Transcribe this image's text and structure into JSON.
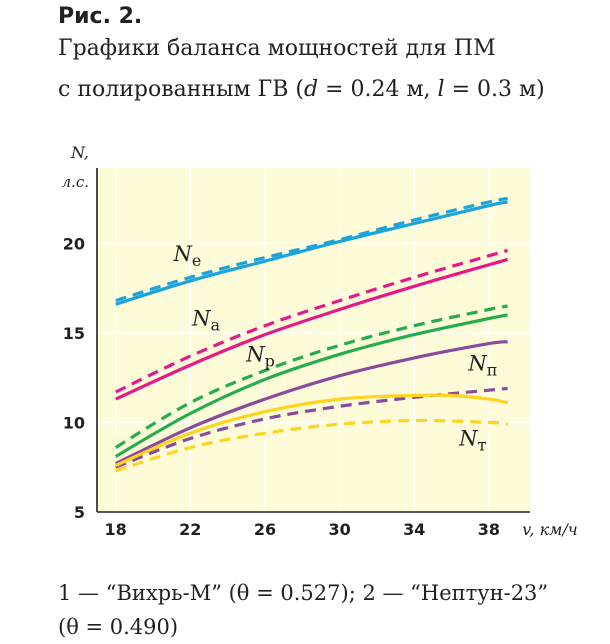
{
  "figure_label": "Рис. 2.",
  "caption": {
    "line1": "Графики баланса мощностей для ПМ",
    "line2_prefix": "с полированным ГВ (",
    "d_var": "d",
    "d_value": " = 0.24  м, ",
    "l_var": "l",
    "l_value": " = 0.3 м)"
  },
  "legend_text": {
    "line1": "1 — “Вихрь-М” (θ = 0.527); 2 — “Нептун-23”",
    "line2": "(θ = 0.490)"
  },
  "colors": {
    "background": "#fefbd8",
    "grid": "#ffffff",
    "Ne": "#1aa3dd",
    "Na": "#e6198c",
    "Np": "#25ac4c",
    "Nn": "#8a4a9e",
    "Nt": "#ffd41f"
  },
  "chart_data": {
    "type": "line",
    "ylabel_line1": "N,",
    "ylabel_line2": "л.с.",
    "xlabel": "v, км/ч",
    "xlim": [
      17,
      40.2
    ],
    "ylim": [
      5,
      24.2
    ],
    "xticks": [
      18,
      22,
      26,
      30,
      34,
      38
    ],
    "yticks": [
      5,
      10,
      15,
      20
    ],
    "grid": true,
    "annotations": [
      {
        "base": "N",
        "sub": "e",
        "x": 21.1,
        "y": 19.0
      },
      {
        "base": "N",
        "sub": "a",
        "x": 22.1,
        "y": 15.4
      },
      {
        "base": "N",
        "sub": "р",
        "x": 25.0,
        "y": 13.4
      },
      {
        "base": "N",
        "sub": "п",
        "x": 36.9,
        "y": 12.9
      },
      {
        "base": "N",
        "sub": "т",
        "x": 36.4,
        "y": 8.7
      }
    ],
    "series": [
      {
        "key": "Ne",
        "style": "solid",
        "x": [
          18,
          22,
          26,
          30,
          34,
          38,
          39
        ],
        "y": [
          16.6,
          17.9,
          19.0,
          20.1,
          21.1,
          22.1,
          22.3
        ]
      },
      {
        "key": "Ne",
        "style": "dashed",
        "x": [
          18,
          22,
          26,
          30,
          34,
          38,
          39
        ],
        "y": [
          16.8,
          18.1,
          19.2,
          20.2,
          21.3,
          22.3,
          22.5
        ]
      },
      {
        "key": "Na",
        "style": "solid",
        "x": [
          18,
          22,
          26,
          30,
          34,
          38,
          39
        ],
        "y": [
          11.3,
          13.2,
          14.9,
          16.3,
          17.6,
          18.8,
          19.1
        ]
      },
      {
        "key": "Na",
        "style": "dashed",
        "x": [
          18,
          22,
          26,
          30,
          34,
          38,
          39
        ],
        "y": [
          11.7,
          13.7,
          15.4,
          16.8,
          18.1,
          19.3,
          19.6
        ]
      },
      {
        "key": "Np",
        "style": "solid",
        "x": [
          18,
          22,
          26,
          30,
          34,
          38,
          39
        ],
        "y": [
          8.1,
          10.5,
          12.4,
          13.8,
          14.9,
          15.8,
          16.0
        ]
      },
      {
        "key": "Np",
        "style": "dashed",
        "x": [
          18,
          22,
          26,
          30,
          34,
          38,
          39
        ],
        "y": [
          8.6,
          11.1,
          12.9,
          14.3,
          15.4,
          16.3,
          16.5
        ]
      },
      {
        "key": "Nn",
        "style": "solid",
        "x": [
          18,
          22,
          26,
          30,
          34,
          38,
          39
        ],
        "y": [
          7.7,
          9.7,
          11.3,
          12.6,
          13.6,
          14.4,
          14.5
        ]
      },
      {
        "key": "Nn",
        "style": "dashed",
        "x": [
          18,
          22,
          26,
          30,
          34,
          38,
          39
        ],
        "y": [
          7.5,
          9.1,
          10.2,
          10.9,
          11.4,
          11.8,
          11.9
        ]
      },
      {
        "key": "Nt",
        "style": "solid",
        "x": [
          18,
          22,
          26,
          30,
          34,
          36,
          38,
          39
        ],
        "y": [
          7.6,
          9.4,
          10.6,
          11.3,
          11.5,
          11.5,
          11.3,
          11.1
        ]
      },
      {
        "key": "Nt",
        "style": "dashed",
        "x": [
          18,
          22,
          26,
          30,
          34,
          38,
          39
        ],
        "y": [
          7.3,
          8.6,
          9.4,
          9.9,
          10.1,
          10.0,
          9.9
        ]
      }
    ]
  }
}
